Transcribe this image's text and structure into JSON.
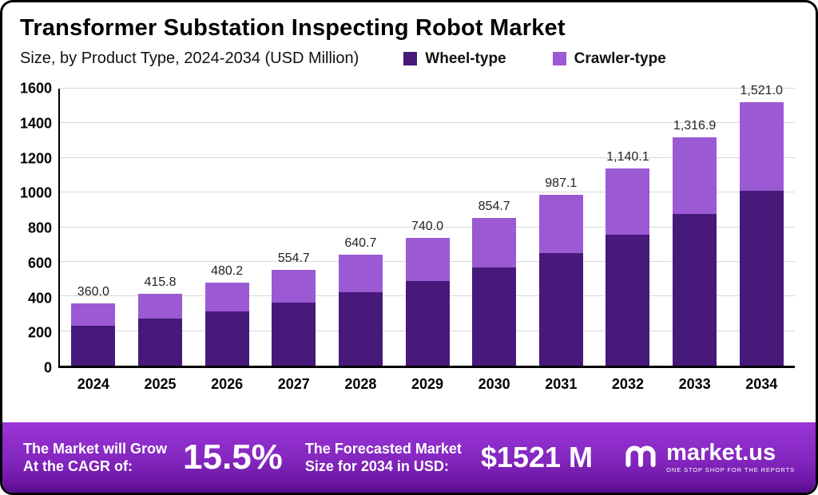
{
  "header": {
    "title": "Transformer Substation Inspecting Robot Market",
    "subtitle": "Size, by Product Type, 2024-2034 (USD Million)"
  },
  "legend": [
    {
      "label": "Wheel-type",
      "color": "#46197b"
    },
    {
      "label": "Crawler-type",
      "color": "#9c59d4"
    }
  ],
  "chart_data": {
    "type": "bar",
    "stacked": true,
    "title": "Transformer Substation Inspecting Robot Market Size, by Product Type, 2024-2034 (USD Million)",
    "categories": [
      "2024",
      "2025",
      "2026",
      "2027",
      "2028",
      "2029",
      "2030",
      "2031",
      "2032",
      "2033",
      "2034"
    ],
    "series": [
      {
        "name": "Wheel-type",
        "color": "#46197b",
        "values": [
          230,
          270,
          315,
          365,
          425,
          490,
          565,
          650,
          755,
          875,
          1010
        ]
      },
      {
        "name": "Crawler-type",
        "color": "#9c59d4",
        "values": [
          130.0,
          145.8,
          165.2,
          189.7,
          215.7,
          250.0,
          289.7,
          337.1,
          385.1,
          441.9,
          511.0
        ]
      }
    ],
    "totals": [
      360.0,
      415.8,
      480.2,
      554.7,
      640.7,
      740.0,
      854.7,
      987.1,
      1140.1,
      1316.9,
      1521.0
    ],
    "total_labels": [
      "360.0",
      "415.8",
      "480.2",
      "554.7",
      "640.7",
      "740.0",
      "854.7",
      "987.1",
      "1,140.1",
      "1,316.9",
      "1,521.0"
    ],
    "xlabel": "",
    "ylabel": "",
    "ylim": [
      0,
      1600
    ],
    "ytick_step": 200,
    "grid": true,
    "legend_position": "top-right"
  },
  "banner": {
    "cagr_label_line1": "The Market will Grow",
    "cagr_label_line2": "At the CAGR of:",
    "cagr_value": "15.5%",
    "forecast_label_line1": "The Forecasted Market",
    "forecast_label_line2": "Size for 2034 in USD:",
    "forecast_value": "$1521 M",
    "brand": "market.us",
    "brand_tagline": "ONE STOP SHOP FOR THE REPORTS"
  },
  "colors": {
    "wheel": "#46197b",
    "crawler": "#9c59d4",
    "banner_top": "#9a35d8",
    "banner_bottom": "#570d8d",
    "gridline": "#d8d8d8"
  }
}
